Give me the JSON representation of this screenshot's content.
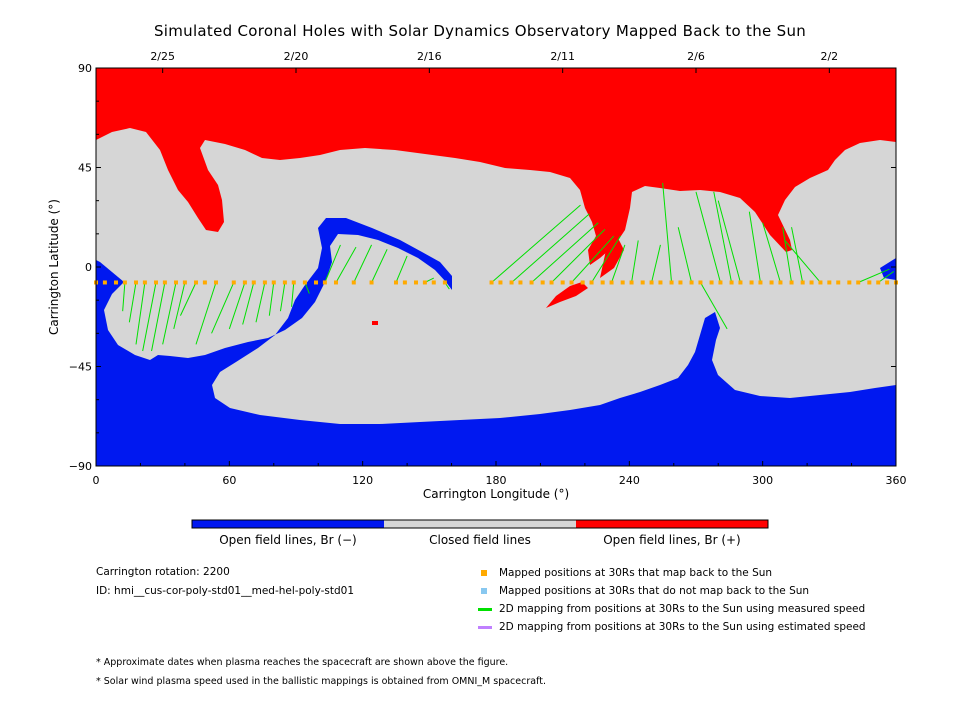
{
  "title": "Simulated Coronal Holes with Solar Dynamics Observatory Mapped Back to the Sun",
  "chart_data": {
    "type": "map",
    "xlabel": "Carrington Longitude (°)",
    "ylabel": "Carrington Latitude (°)",
    "xlim": [
      0,
      360
    ],
    "ylim": [
      -90,
      90
    ],
    "x_ticks": [
      "0",
      "60",
      "120",
      "180",
      "240",
      "300",
      "360"
    ],
    "y_ticks": [
      "90",
      "45",
      "0",
      "−45",
      "−90"
    ],
    "top_date_ticks": [
      {
        "label": "2/25",
        "lon": 30
      },
      {
        "label": "2/20",
        "lon": 90
      },
      {
        "label": "2/16",
        "lon": 150
      },
      {
        "label": "2/11",
        "lon": 210
      },
      {
        "label": "2/6",
        "lon": 270
      },
      {
        "label": "2/2",
        "lon": 330
      }
    ],
    "spacecraft_track_latitude": -7,
    "mapped_points_lon": [
      0,
      4,
      9,
      13,
      18,
      22,
      27,
      31,
      36,
      40,
      45,
      49,
      54,
      62,
      67,
      71,
      76,
      80,
      85,
      89,
      94,
      99,
      103,
      108,
      116,
      124,
      135,
      139,
      144,
      148,
      152,
      157,
      178,
      182,
      187,
      191,
      196,
      201,
      205,
      210,
      214,
      219,
      223,
      228,
      232,
      237,
      241,
      246,
      250,
      254,
      259,
      263,
      268,
      272,
      277,
      281,
      286,
      290,
      295,
      299,
      304,
      308,
      313,
      318,
      322,
      326,
      330,
      334,
      339,
      343,
      348,
      352,
      356,
      360
    ],
    "mapping_lines": [
      {
        "from": [
          13,
          -7
        ],
        "to": [
          12,
          -20
        ]
      },
      {
        "from": [
          18,
          -7
        ],
        "to": [
          15,
          -25
        ]
      },
      {
        "from": [
          22,
          -7
        ],
        "to": [
          18,
          -35
        ]
      },
      {
        "from": [
          27,
          -7
        ],
        "to": [
          21,
          -38
        ]
      },
      {
        "from": [
          31,
          -7
        ],
        "to": [
          25,
          -38
        ]
      },
      {
        "from": [
          36,
          -7
        ],
        "to": [
          30,
          -35
        ]
      },
      {
        "from": [
          40,
          -7
        ],
        "to": [
          35,
          -28
        ]
      },
      {
        "from": [
          45,
          -7
        ],
        "to": [
          38,
          -22
        ]
      },
      {
        "from": [
          54,
          -7
        ],
        "to": [
          45,
          -35
        ]
      },
      {
        "from": [
          62,
          -7
        ],
        "to": [
          52,
          -30
        ]
      },
      {
        "from": [
          67,
          -7
        ],
        "to": [
          60,
          -28
        ]
      },
      {
        "from": [
          71,
          -7
        ],
        "to": [
          66,
          -26
        ]
      },
      {
        "from": [
          76,
          -7
        ],
        "to": [
          72,
          -25
        ]
      },
      {
        "from": [
          80,
          -7
        ],
        "to": [
          78,
          -22
        ]
      },
      {
        "from": [
          85,
          -7
        ],
        "to": [
          83,
          -20
        ]
      },
      {
        "from": [
          89,
          -7
        ],
        "to": [
          88,
          -18
        ]
      },
      {
        "from": [
          94,
          -7
        ],
        "to": [
          96,
          -12
        ]
      },
      {
        "from": [
          103,
          -7
        ],
        "to": [
          110,
          10
        ]
      },
      {
        "from": [
          108,
          -7
        ],
        "to": [
          117,
          9
        ]
      },
      {
        "from": [
          116,
          -7
        ],
        "to": [
          124,
          10
        ]
      },
      {
        "from": [
          124,
          -7
        ],
        "to": [
          131,
          8
        ]
      },
      {
        "from": [
          135,
          -7
        ],
        "to": [
          140,
          5
        ]
      },
      {
        "from": [
          148,
          -7
        ],
        "to": [
          152,
          -5
        ]
      },
      {
        "from": [
          157,
          -7
        ],
        "to": [
          159,
          -10
        ]
      },
      {
        "from": [
          178,
          -7
        ],
        "to": [
          218,
          28
        ]
      },
      {
        "from": [
          187,
          -7
        ],
        "to": [
          222,
          24
        ]
      },
      {
        "from": [
          196,
          -7
        ],
        "to": [
          226,
          20
        ]
      },
      {
        "from": [
          205,
          -7
        ],
        "to": [
          229,
          17
        ]
      },
      {
        "from": [
          214,
          -7
        ],
        "to": [
          233,
          14
        ]
      },
      {
        "from": [
          223,
          -7
        ],
        "to": [
          236,
          14
        ]
      },
      {
        "from": [
          232,
          -7
        ],
        "to": [
          238,
          10
        ]
      },
      {
        "from": [
          241,
          -7
        ],
        "to": [
          244,
          12
        ]
      },
      {
        "from": [
          250,
          -7
        ],
        "to": [
          254,
          10
        ]
      },
      {
        "from": [
          259,
          -7
        ],
        "to": [
          255,
          38
        ]
      },
      {
        "from": [
          268,
          -7
        ],
        "to": [
          262,
          18
        ]
      },
      {
        "from": [
          272,
          -7
        ],
        "to": [
          284,
          -28
        ]
      },
      {
        "from": [
          281,
          -7
        ],
        "to": [
          270,
          34
        ]
      },
      {
        "from": [
          286,
          -7
        ],
        "to": [
          278,
          34
        ]
      },
      {
        "from": [
          290,
          -7
        ],
        "to": [
          280,
          30
        ]
      },
      {
        "from": [
          299,
          -7
        ],
        "to": [
          294,
          25
        ]
      },
      {
        "from": [
          308,
          -7
        ],
        "to": [
          300,
          20
        ]
      },
      {
        "from": [
          313,
          -7
        ],
        "to": [
          309,
          18
        ]
      },
      {
        "from": [
          318,
          -7
        ],
        "to": [
          313,
          18
        ]
      },
      {
        "from": [
          326,
          -7
        ],
        "to": [
          310,
          12
        ]
      },
      {
        "from": [
          343,
          -7
        ],
        "to": [
          357,
          -1
        ]
      },
      {
        "from": [
          352,
          -7
        ],
        "to": [
          359,
          -2
        ]
      }
    ],
    "regions": [
      {
        "name": "Open field lines, Br (−)",
        "color": "#0018f0"
      },
      {
        "name": "Closed field lines",
        "color": "#d6d6d6"
      },
      {
        "name": "Open field lines, Br (+)",
        "color": "#ff0000"
      }
    ]
  },
  "colorbar": {
    "labels": [
      "Open field lines, Br (−)",
      "Closed field lines",
      "Open field lines, Br (+)"
    ],
    "colors": [
      "#0018f0",
      "#d6d6d6",
      "#ff0000"
    ]
  },
  "info": {
    "rotation": "Carrington rotation: 2200",
    "id": "ID: hmi__cus-cor-poly-std01__med-hel-poly-std01"
  },
  "legend": [
    {
      "label": "Mapped positions at 30Rs that map back to the Sun",
      "color": "#ffaa00",
      "kind": "square"
    },
    {
      "label": "Mapped positions at 30Rs that do not map back to the Sun",
      "color": "#88c8f0",
      "kind": "square"
    },
    {
      "label": "2D mapping from positions at 30Rs to the Sun using measured speed",
      "color": "#00e000",
      "kind": "line"
    },
    {
      "label": "2D mapping from positions at 30Rs to the Sun using estimated speed",
      "color": "#c080ff",
      "kind": "line"
    }
  ],
  "notes": [
    "* Approximate dates when plasma reaches the spacecraft are shown above the figure.",
    "* Solar wind plasma speed used in the ballistic mappings is obtained from OMNI_M spacecraft."
  ]
}
